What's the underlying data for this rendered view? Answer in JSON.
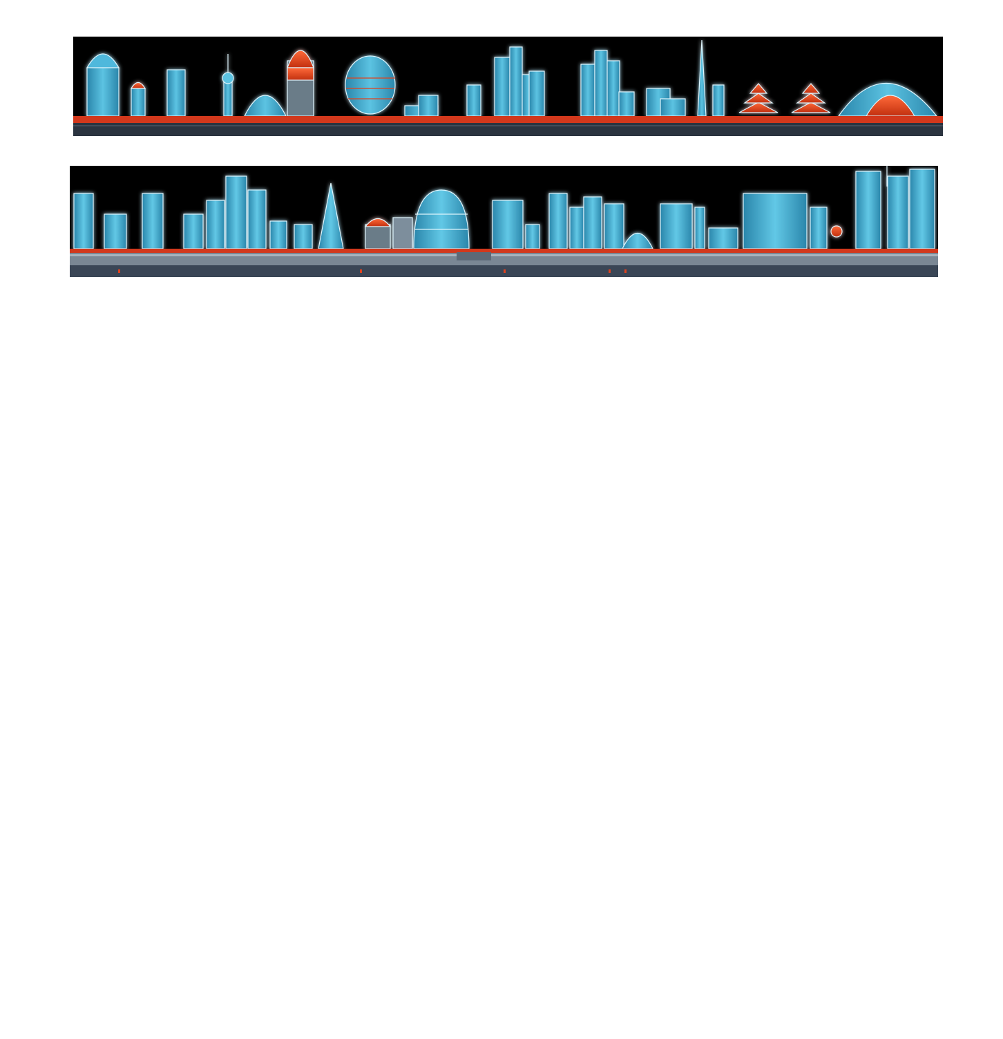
{
  "page": {
    "background": "#ffffff"
  },
  "panels": [
    {
      "name": "skyline-strip-top",
      "description_icon": "futuristic-city-skyline",
      "colors": {
        "sky": "#000000",
        "building": "#3aa6c8",
        "building_light": "#7fd3ea",
        "accent": "#e0421e",
        "rail": "#d2381c",
        "base": "#2b3440",
        "glow": "#bfe8f5"
      }
    },
    {
      "name": "skyline-strip-bottom",
      "description_icon": "futuristic-city-skyline",
      "colors": {
        "sky": "#000000",
        "building": "#3aa6c8",
        "building_light": "#7fd3ea",
        "accent": "#e0421e",
        "rail": "#d2381c",
        "base": "#3a4656",
        "glow": "#bfe8f5"
      }
    }
  ]
}
